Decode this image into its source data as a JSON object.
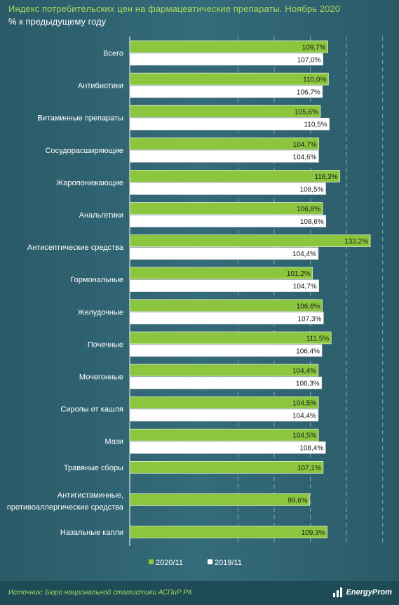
{
  "header": {
    "title": "Индекс потребительских цен на фармацевтические препараты. Ноябрь 2020",
    "subtitle": "% к предыдущему году"
  },
  "colors": {
    "series_2020": "#8cc63f",
    "series_2019": "#ffffff",
    "background": "#2f6371",
    "grid": "#7fa8b3"
  },
  "footer": {
    "source": "Источник: Бюро национальной статистики АСПиР РК",
    "logo_text": "EnergyProm",
    "logo_icon": "energyprom-logo-icon"
  },
  "chart_data": {
    "type": "bar",
    "orientation": "horizontal",
    "title": "Индекс потребительских цен на фармацевтические препараты. Ноябрь 2020",
    "subtitle": "% к предыдущему году",
    "grid": true,
    "legend_position": "bottom",
    "categories": [
      "Всего",
      "Антибиотики",
      "Витаминные препараты",
      "Сосудорасширяющие",
      "Жаропонижающие",
      "Анальгетики",
      "Антисептические средства",
      "Гормональные",
      "Желудочные",
      "Почечные",
      "Мочегонные",
      "Сиропы от кашля",
      "Мази",
      "Травяные сборы",
      [
        "Антигистаминные,",
        "противоаллергические средства"
      ],
      "Назальные капли"
    ],
    "series": [
      {
        "name": "2020/11",
        "values": [
          109.7,
          110.0,
          105.6,
          104.7,
          116.3,
          106.8,
          133.2,
          101.2,
          106.6,
          111.5,
          104.4,
          104.5,
          104.5,
          107.1,
          99.6,
          109.3
        ],
        "labels": [
          "109,7%",
          "110,0%",
          "105,6%",
          "104,7%",
          "116,3%",
          "106,8%",
          "133,2%",
          "101,2%",
          "106,6%",
          "111,5%",
          "104,4%",
          "104,5%",
          "104,5%",
          "107,1%",
          "99,6%",
          "109,3%"
        ]
      },
      {
        "name": "2019/11",
        "values": [
          107.0,
          106.7,
          110.5,
          104.6,
          108.5,
          108.6,
          104.4,
          104.7,
          107.3,
          106.4,
          106.3,
          104.4,
          108.4,
          null,
          null,
          null
        ],
        "labels": [
          "107,0%",
          "106,7%",
          "110,5%",
          "104,6%",
          "108,5%",
          "108,6%",
          "104,4%",
          "104,7%",
          "107,3%",
          "106,4%",
          "106,3%",
          "104,4%",
          "108,4%",
          null,
          null,
          null
        ]
      }
    ]
  }
}
